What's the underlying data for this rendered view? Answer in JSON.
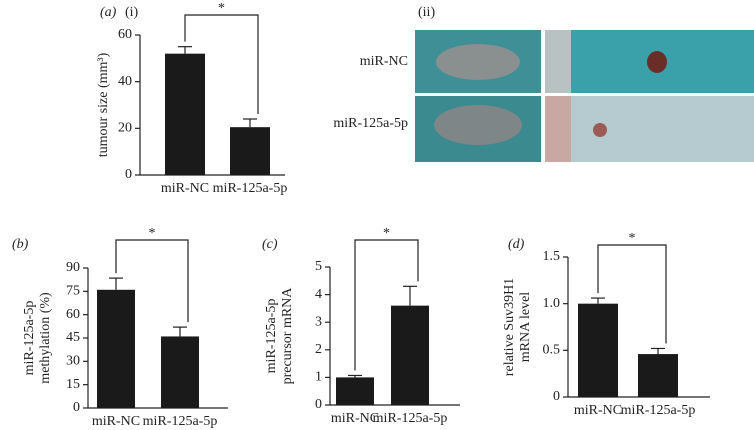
{
  "chart_data": [
    {
      "type": "bar",
      "panel": "(a)",
      "subpanel": "(i)",
      "annotation": "*",
      "ylabel": [
        "tumour size (mm³)"
      ],
      "categories": [
        "miR-NC",
        "miR-125a-5p"
      ],
      "values": [
        52,
        20.5
      ],
      "errors": [
        3,
        3.5
      ],
      "color": "#1a1a1a",
      "ylim": [
        0,
        60
      ],
      "yticks": [
        0,
        20,
        40,
        60
      ]
    },
    {
      "type": "bar",
      "panel": "(b)",
      "annotation": "*",
      "ylabel": [
        "miR-125a-5p",
        "methylation (%)"
      ],
      "categories": [
        "miR-NC",
        "miR-125a-5p"
      ],
      "values": [
        76,
        46
      ],
      "errors": [
        7.5,
        6
      ],
      "color": "#1a1a1a",
      "ylim": [
        0,
        90
      ],
      "yticks": [
        0,
        15,
        30,
        45,
        60,
        75,
        90
      ]
    },
    {
      "type": "bar",
      "panel": "(c)",
      "annotation": "*",
      "ylabel": [
        "miR-125a-5p",
        "precursor mRNA"
      ],
      "categories": [
        "miR-NC",
        "miR-125a-5p"
      ],
      "values": [
        1,
        3.6
      ],
      "errors": [
        0.07,
        0.7
      ],
      "color": "#1a1a1a",
      "ylim": [
        0,
        5
      ],
      "yticks": [
        0,
        1,
        2,
        3,
        4,
        5
      ]
    },
    {
      "type": "bar",
      "panel": "(d)",
      "annotation": "*",
      "ylabel": [
        "relative Suv39H1",
        "mRNA level"
      ],
      "categories": [
        "miR-NC",
        "miR-125a-5p"
      ],
      "values": [
        1.0,
        0.46
      ],
      "errors": [
        0.06,
        0.06
      ],
      "color": "#1a1a1a",
      "ylim": [
        0,
        1.5
      ],
      "yticks": [
        0,
        0.5,
        {
          "value": 1,
          "label": "1.0"
        },
        1.5
      ]
    }
  ],
  "photo_panel": {
    "label": "(ii)",
    "rows": [
      "miR-NC",
      "miR-125a-5p"
    ]
  }
}
